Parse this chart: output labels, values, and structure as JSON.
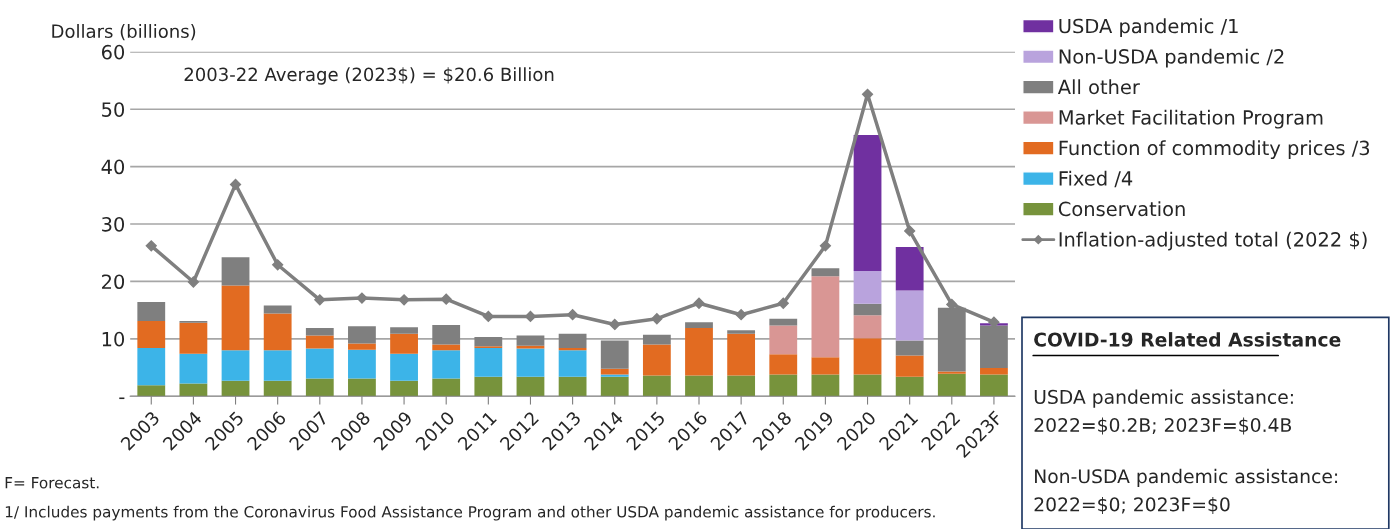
{
  "chart_data": {
    "type": "bar",
    "stacked": true,
    "ylabel": "Dollars (billions)",
    "categories": [
      "2003",
      "2004",
      "2005",
      "2006",
      "2007",
      "2008",
      "2009",
      "2010",
      "2011",
      "2012",
      "2013",
      "2014",
      "2015",
      "2016",
      "2017",
      "2018",
      "2019",
      "2020",
      "2021",
      "2022",
      "2023F"
    ],
    "series": [
      {
        "name": "Conservation",
        "color": "#77933c",
        "values": [
          1.9,
          2.2,
          2.7,
          2.7,
          3.1,
          3.1,
          2.7,
          3.1,
          3.4,
          3.4,
          3.4,
          3.4,
          3.6,
          3.6,
          3.6,
          3.8,
          3.8,
          3.8,
          3.4,
          3.9,
          3.8
        ]
      },
      {
        "name": "Fixed /4",
        "color": "#3cb4e8",
        "values": [
          6.5,
          5.2,
          5.3,
          5.3,
          5.2,
          5.0,
          4.7,
          4.9,
          5.0,
          4.9,
          4.6,
          0.4,
          0,
          0,
          0,
          0,
          0,
          0,
          0,
          0,
          0
        ]
      },
      {
        "name": "Function of commodity prices /3",
        "color": "#e26b21",
        "values": [
          4.7,
          5.4,
          11.3,
          6.4,
          2.3,
          1.1,
          3.5,
          1.0,
          0.3,
          0.5,
          0.4,
          1.0,
          5.4,
          8.3,
          7.3,
          3.5,
          3.0,
          6.3,
          3.7,
          0.4,
          1.1
        ]
      },
      {
        "name": "Market Facilitation Program",
        "color": "#d99694",
        "values": [
          0,
          0,
          0,
          0,
          0,
          0,
          0,
          0,
          0,
          0,
          0,
          0,
          0,
          0,
          0,
          5.0,
          14.1,
          4.0,
          0,
          0,
          0
        ]
      },
      {
        "name": "All other",
        "color": "#7f7f7f",
        "values": [
          3.3,
          0.3,
          4.9,
          1.4,
          1.3,
          3.0,
          1.1,
          3.4,
          1.6,
          1.8,
          2.5,
          4.9,
          1.7,
          1.0,
          0.6,
          1.2,
          1.4,
          2.0,
          2.6,
          11.1,
          7.4
        ]
      },
      {
        "name": "Non-USDA pandemic /2",
        "color": "#b9a3dd",
        "values": [
          0,
          0,
          0,
          0,
          0,
          0,
          0,
          0,
          0,
          0,
          0,
          0,
          0,
          0,
          0,
          0,
          0,
          5.7,
          8.7,
          0,
          0
        ]
      },
      {
        "name": "USDA pandemic /1",
        "color": "#7030a0",
        "values": [
          0,
          0,
          0,
          0,
          0,
          0,
          0,
          0,
          0,
          0,
          0,
          0,
          0,
          0,
          0,
          0,
          0,
          23.7,
          7.6,
          null,
          0.4
        ]
      },
      {
        "name": "Inflation-adjusted total (2022 $)",
        "type": "line",
        "color": "#7f7f7f",
        "marker": "diamond",
        "values": [
          26.2,
          19.9,
          36.9,
          22.9,
          16.8,
          17.1,
          16.8,
          16.9,
          13.9,
          13.9,
          14.2,
          12.5,
          13.5,
          16.2,
          14.2,
          16.2,
          26.2,
          52.6,
          28.8,
          16.0,
          12.9
        ]
      }
    ],
    "ylim": [
      0,
      60
    ],
    "yticks": [
      {
        "value": 0,
        "label": "-"
      },
      10,
      20,
      30,
      40,
      50,
      60
    ],
    "grid": "y",
    "legend": "right",
    "annotations": [
      "2003-22 Average (2023$) = $20.6 Billion",
      "F= Forecast.",
      "1/ Includes payments from the Coronavirus Food Assistance Program and other USDA pandemic assistance for producers.",
      "COVID-19 Related Assistance",
      "USDA pandemic assistance:\n2022=$0.2B; 2023F=$0.4B",
      "Non-USDA pandemic assistance:\n2022=$0; 2023F=$0"
    ]
  }
}
